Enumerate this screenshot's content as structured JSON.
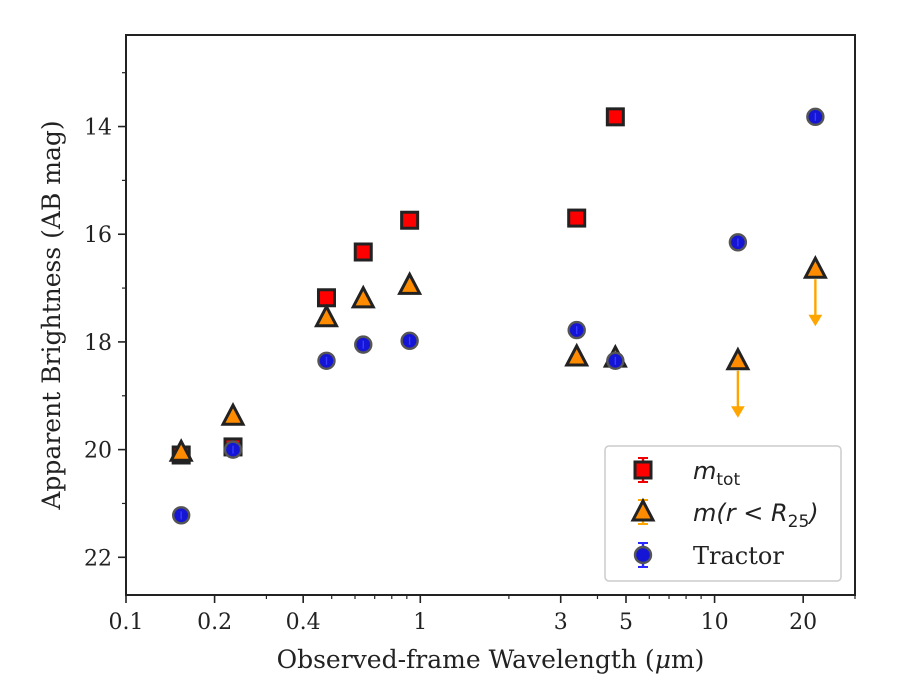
{
  "chart_data": {
    "type": "scatter",
    "xlabel": "Observed-frame Wavelength (μm)",
    "ylabel": "Apparent Brightness (AB mag)",
    "xscale": "log",
    "xlim": [
      0.1,
      30
    ],
    "ylim": [
      22.7,
      12.3
    ],
    "y_inverted": true,
    "x_ticks": [
      0.1,
      0.2,
      0.4,
      1,
      3,
      5,
      10,
      20
    ],
    "x_tick_labels": [
      "0.1",
      "0.2",
      "0.4",
      "1",
      "3",
      "5",
      "10",
      "20"
    ],
    "y_ticks": [
      14,
      16,
      18,
      20,
      22
    ],
    "y_tick_labels": [
      "14",
      "16",
      "18",
      "20",
      "22"
    ],
    "grid": false,
    "legend_position": "lower-right",
    "colors": {
      "m_tot": "#ff0000",
      "m_r25": "#ff8c00",
      "tractor": "#1515d6",
      "upper_limit_arrow": "#ffa500",
      "edge": "#222222"
    },
    "series": [
      {
        "name": "m_tot",
        "marker": "square",
        "x": [
          0.154,
          0.231,
          0.48,
          0.64,
          0.92,
          3.4,
          4.6
        ],
        "y": [
          20.1,
          19.95,
          17.18,
          16.33,
          15.74,
          15.7,
          13.82
        ]
      },
      {
        "name": "m(r < R25)",
        "marker": "triangle",
        "x": [
          0.154,
          0.231,
          0.48,
          0.64,
          0.92,
          3.4,
          4.6,
          12.0,
          22.0
        ],
        "y": [
          20.05,
          19.38,
          17.55,
          17.2,
          16.95,
          18.28,
          18.3,
          18.35,
          16.65
        ],
        "upper_limits": [
          false,
          false,
          false,
          false,
          false,
          false,
          false,
          true,
          true
        ]
      },
      {
        "name": "Tractor",
        "marker": "circle",
        "x": [
          0.154,
          0.231,
          0.48,
          0.64,
          0.92,
          3.4,
          4.6,
          12.0,
          22.0
        ],
        "y": [
          21.22,
          20.0,
          18.35,
          18.05,
          17.98,
          17.78,
          18.35,
          16.15,
          13.82
        ]
      }
    ],
    "legend": [
      {
        "label": "m",
        "sub": "tot",
        "series": "m_tot"
      },
      {
        "label": "m(r < R",
        "sub": "25",
        "suffix": ")",
        "series": "m(r < R25)"
      },
      {
        "label": "Tractor",
        "series": "Tractor"
      }
    ]
  }
}
